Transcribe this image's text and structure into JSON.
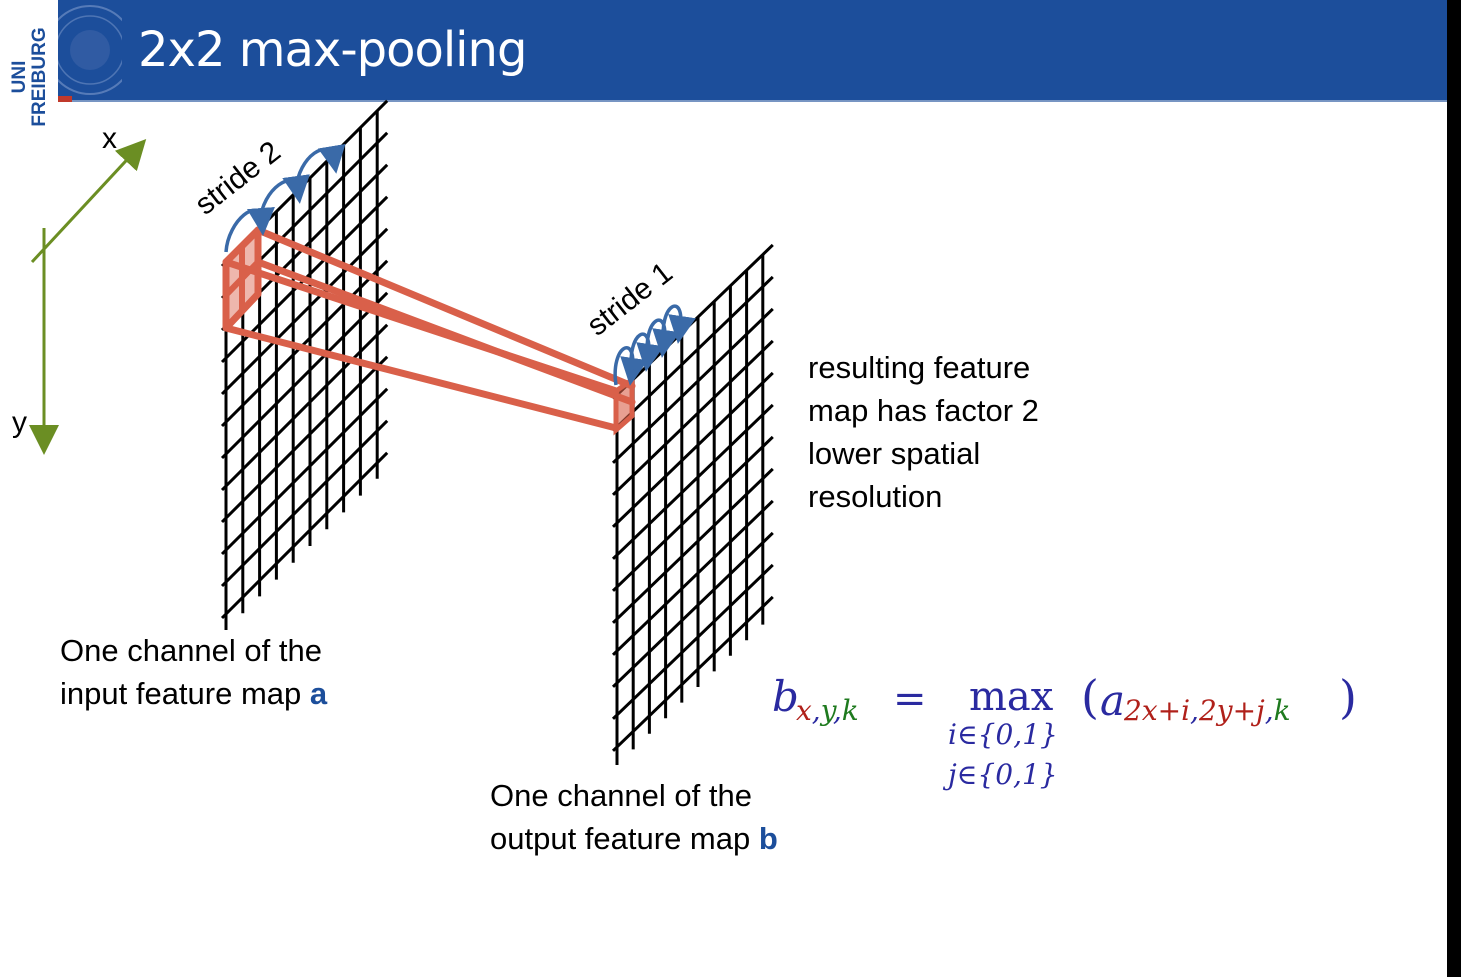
{
  "slide": {
    "title": "2x2 max-pooling",
    "logo": {
      "line1": "UNI",
      "line2": "FREIBURG"
    },
    "colors": {
      "header": "#1c4e9b",
      "pool": "#d9604a",
      "arrow": "#3a6aa8",
      "axis": "#6b8e23"
    }
  },
  "diagram": {
    "axis_x_label": "x",
    "axis_y_label": "y",
    "stride_input_label": "stride 2",
    "stride_output_label": "stride 1",
    "input_caption": {
      "line1": "One channel of the",
      "line2_prefix": "input feature map ",
      "var": "a"
    },
    "output_caption": {
      "line1": "One channel of the",
      "line2_prefix": "output feature map ",
      "var": "b"
    },
    "note": [
      "resulting feature",
      "map has factor 2",
      "lower spatial",
      "resolution"
    ]
  },
  "formula": {
    "lhs_base": "b",
    "lhs_sub": {
      "x": "x",
      "c1": ",",
      "y": "y",
      "c2": ",",
      "k": "k"
    },
    "equals": "=",
    "op": "max",
    "limits": [
      "i∈{0,1}",
      "j∈{0,1}"
    ],
    "paren_open": "(",
    "rhs_base": "a",
    "rhs_sub": {
      "x": "2x+i",
      "c1": ",",
      "y": "2y+j",
      "c2": ",",
      "k": "k"
    },
    "paren_close": ")"
  }
}
